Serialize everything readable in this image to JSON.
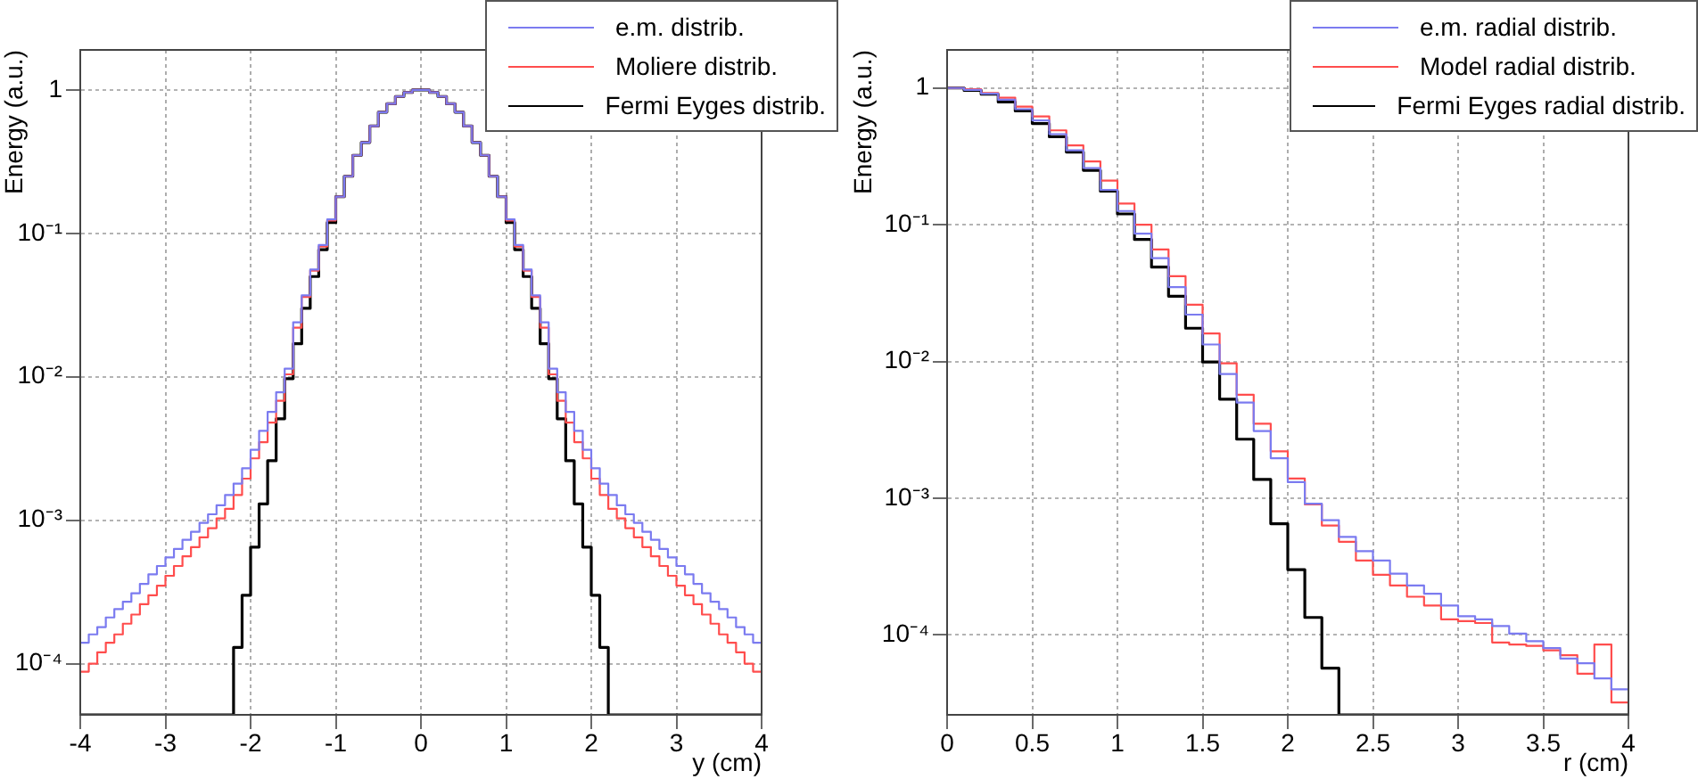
{
  "chart_data": [
    {
      "type": "histogram",
      "xlabel": "y (cm)",
      "ylabel": "Energy (a.u.)",
      "log": true,
      "grid": true,
      "legend": "top right",
      "marker": "none",
      "line_style": "solid",
      "xlim": [
        -4,
        4
      ],
      "xticks": [
        -4,
        -3,
        -2,
        -1,
        0,
        1,
        2,
        3,
        4
      ],
      "ylim": [
        4.4e-05,
        1.9
      ],
      "yticks": [
        {
          "value": 0.0001,
          "label": "10⁻⁴"
        },
        {
          "value": 0.001,
          "label": "10⁻³"
        },
        {
          "value": 0.01,
          "label": "10⁻²"
        },
        {
          "value": 0.1,
          "label": "10⁻¹"
        },
        1
      ],
      "bins": [
        -4,
        -3.9,
        -3.8,
        -3.7,
        -3.6,
        -3.5,
        -3.4,
        -3.3,
        -3.2,
        -3.1,
        -3,
        -2.9,
        -2.8,
        -2.7,
        -2.6,
        -2.5,
        -2.4,
        -2.3,
        -2.2,
        -2.1,
        -2,
        -1.9,
        -1.8,
        -1.7,
        -1.6,
        -1.5,
        -1.4,
        -1.3,
        -1.2,
        -1.1,
        -1,
        -0.9,
        -0.8,
        -0.7,
        -0.6,
        -0.5,
        -0.4,
        -0.3,
        -0.2,
        -0.1,
        0,
        0.1,
        0.2,
        0.3,
        0.4,
        0.5,
        0.6,
        0.7,
        0.8,
        0.9,
        1,
        1.1,
        1.2,
        1.3,
        1.4,
        1.5,
        1.6,
        1.7,
        1.8,
        1.9,
        2,
        2.1,
        2.2,
        2.3,
        2.4,
        2.5,
        2.6,
        2.7,
        2.8,
        2.9,
        3,
        3.1,
        3.2,
        3.3,
        3.4,
        3.5,
        3.6,
        3.7,
        3.8,
        3.9,
        4
      ],
      "series": [
        {
          "name": "e.m. distrib.",
          "color": "#7b7bf0",
          "values": [
            0.00014,
            0.00016,
            0.00018,
            0.00021,
            0.00024,
            0.00027,
            0.00031,
            0.00036,
            0.00042,
            0.00048,
            0.00055,
            0.00063,
            0.00073,
            0.00083,
            0.00096,
            0.0011,
            0.00127,
            0.0015,
            0.0018,
            0.0023,
            0.0031,
            0.0042,
            0.0057,
            0.0078,
            0.0114,
            0.024,
            0.037,
            0.056,
            0.083,
            0.125,
            0.18,
            0.25,
            0.35,
            0.43,
            0.56,
            0.7,
            0.8,
            0.9,
            0.96,
            1.0,
            1.0,
            0.96,
            0.9,
            0.8,
            0.7,
            0.56,
            0.43,
            0.35,
            0.25,
            0.18,
            0.125,
            0.083,
            0.056,
            0.037,
            0.024,
            0.0114,
            0.0078,
            0.0057,
            0.0042,
            0.0031,
            0.0023,
            0.0018,
            0.0015,
            0.00127,
            0.0011,
            0.00096,
            0.00083,
            0.00073,
            0.00063,
            0.00055,
            0.00048,
            0.00042,
            0.00036,
            0.00031,
            0.00027,
            0.00024,
            0.00021,
            0.00018,
            0.00016,
            0.00014
          ]
        },
        {
          "name": "Moliere distrib.",
          "color": "#ff4d4d",
          "values": [
            8.8e-05,
            0.0001,
            0.00012,
            0.00014,
            0.00016,
            0.00019,
            0.00022,
            0.00026,
            0.0003,
            0.00035,
            0.00041,
            0.00048,
            0.00056,
            0.00065,
            0.00076,
            0.00088,
            0.00103,
            0.0012,
            0.0015,
            0.00195,
            0.0027,
            0.0035,
            0.0048,
            0.0068,
            0.0104,
            0.022,
            0.036,
            0.055,
            0.081,
            0.123,
            0.18,
            0.25,
            0.35,
            0.43,
            0.56,
            0.7,
            0.8,
            0.9,
            0.96,
            1.0,
            1.0,
            0.96,
            0.9,
            0.8,
            0.7,
            0.56,
            0.43,
            0.35,
            0.25,
            0.18,
            0.123,
            0.081,
            0.055,
            0.036,
            0.022,
            0.0104,
            0.0068,
            0.0048,
            0.0035,
            0.0027,
            0.00195,
            0.0015,
            0.0012,
            0.00103,
            0.00088,
            0.00076,
            0.00065,
            0.00056,
            0.00048,
            0.00041,
            0.00035,
            0.0003,
            0.00026,
            0.00022,
            0.00019,
            0.00016,
            0.00014,
            0.00012,
            0.0001,
            8.8e-05
          ]
        },
        {
          "name": "Fermi Eyges distrib.",
          "color": "#000000",
          "values": [
            null,
            null,
            null,
            null,
            null,
            null,
            null,
            null,
            null,
            null,
            null,
            null,
            null,
            null,
            null,
            null,
            null,
            null,
            0.00013,
            0.0003,
            0.00065,
            0.0013,
            0.0026,
            0.0051,
            0.0097,
            0.017,
            0.03,
            0.05,
            0.077,
            0.119,
            0.18,
            0.25,
            0.35,
            0.43,
            0.56,
            0.7,
            0.8,
            0.9,
            0.96,
            1.0,
            1.0,
            0.96,
            0.9,
            0.8,
            0.7,
            0.56,
            0.43,
            0.35,
            0.25,
            0.18,
            0.119,
            0.077,
            0.05,
            0.03,
            0.017,
            0.0097,
            0.0051,
            0.0026,
            0.0013,
            0.00065,
            0.0003,
            0.00013,
            null,
            null,
            null,
            null,
            null,
            null,
            null,
            null,
            null,
            null,
            null,
            null,
            null,
            null,
            null,
            null,
            null,
            null
          ]
        }
      ]
    },
    {
      "type": "histogram",
      "xlabel": "r (cm)",
      "ylabel": "Energy (a.u.)",
      "log": true,
      "grid": true,
      "legend": "top right",
      "marker": "none",
      "line_style": "solid",
      "xlim": [
        0,
        4
      ],
      "xticks": [
        0,
        0.5,
        1,
        1.5,
        2,
        2.5,
        3,
        3.5,
        4
      ],
      "ylim": [
        2.6e-05,
        1.9
      ],
      "yticks": [
        {
          "value": 0.0001,
          "label": "10⁻⁴"
        },
        {
          "value": 0.001,
          "label": "10⁻³"
        },
        {
          "value": 0.01,
          "label": "10⁻²"
        },
        {
          "value": 0.1,
          "label": "10⁻¹"
        },
        1
      ],
      "bins": [
        0,
        0.1,
        0.2,
        0.3,
        0.4,
        0.5,
        0.6,
        0.7,
        0.8,
        0.9,
        1,
        1.1,
        1.2,
        1.3,
        1.4,
        1.5,
        1.6,
        1.7,
        1.8,
        1.9,
        2,
        2.1,
        2.2,
        2.3,
        2.4,
        2.5,
        2.6,
        2.7,
        2.8,
        2.9,
        3,
        3.1,
        3.2,
        3.3,
        3.4,
        3.5,
        3.6,
        3.7,
        3.8,
        3.9,
        4
      ],
      "series": [
        {
          "name": "e.m. radial distrib.",
          "color": "#7b7bf0",
          "values": [
            1.0,
            0.97,
            0.91,
            0.82,
            0.7,
            0.58,
            0.46,
            0.35,
            0.26,
            0.18,
            0.126,
            0.086,
            0.057,
            0.035,
            0.022,
            0.0133,
            0.0081,
            0.005,
            0.0031,
            0.00196,
            0.00131,
            0.00091,
            0.00069,
            0.00052,
            0.00041,
            0.00035,
            0.00028,
            0.00023,
            0.0002,
            0.000164,
            0.000137,
            0.00013,
            0.000116,
            0.000102,
            9e-05,
            8e-05,
            6.7e-05,
            6.2e-05,
            4.8e-05,
            4e-05
          ]
        },
        {
          "name": "Model radial distrib.",
          "color": "#ff4d4d",
          "values": [
            1.0,
            0.98,
            0.92,
            0.85,
            0.73,
            0.62,
            0.49,
            0.38,
            0.29,
            0.21,
            0.143,
            0.1,
            0.066,
            0.042,
            0.026,
            0.016,
            0.0097,
            0.0057,
            0.0035,
            0.0022,
            0.00139,
            0.0009,
            0.00063,
            0.00048,
            0.00035,
            0.000275,
            0.00023,
            0.00019,
            0.000164,
            0.00013,
            0.000126,
            0.000122,
            8.8e-05,
            8.5e-05,
            8.3e-05,
            7.7e-05,
            7.1e-05,
            5.2e-05,
            8.5e-05,
            3.2e-05
          ]
        },
        {
          "name": "Fermi Eyges radial distrib.",
          "color": "#000000",
          "values": [
            1.0,
            0.96,
            0.9,
            0.79,
            0.68,
            0.55,
            0.44,
            0.34,
            0.25,
            0.176,
            0.12,
            0.078,
            0.049,
            0.03,
            0.0175,
            0.0099,
            0.0053,
            0.0027,
            0.00137,
            0.00065,
            0.0003,
            0.000134,
            5.7e-05,
            null,
            null,
            null,
            null,
            null,
            null,
            null,
            null,
            null,
            null,
            null,
            null,
            null,
            null,
            null,
            null,
            null
          ]
        }
      ]
    }
  ]
}
